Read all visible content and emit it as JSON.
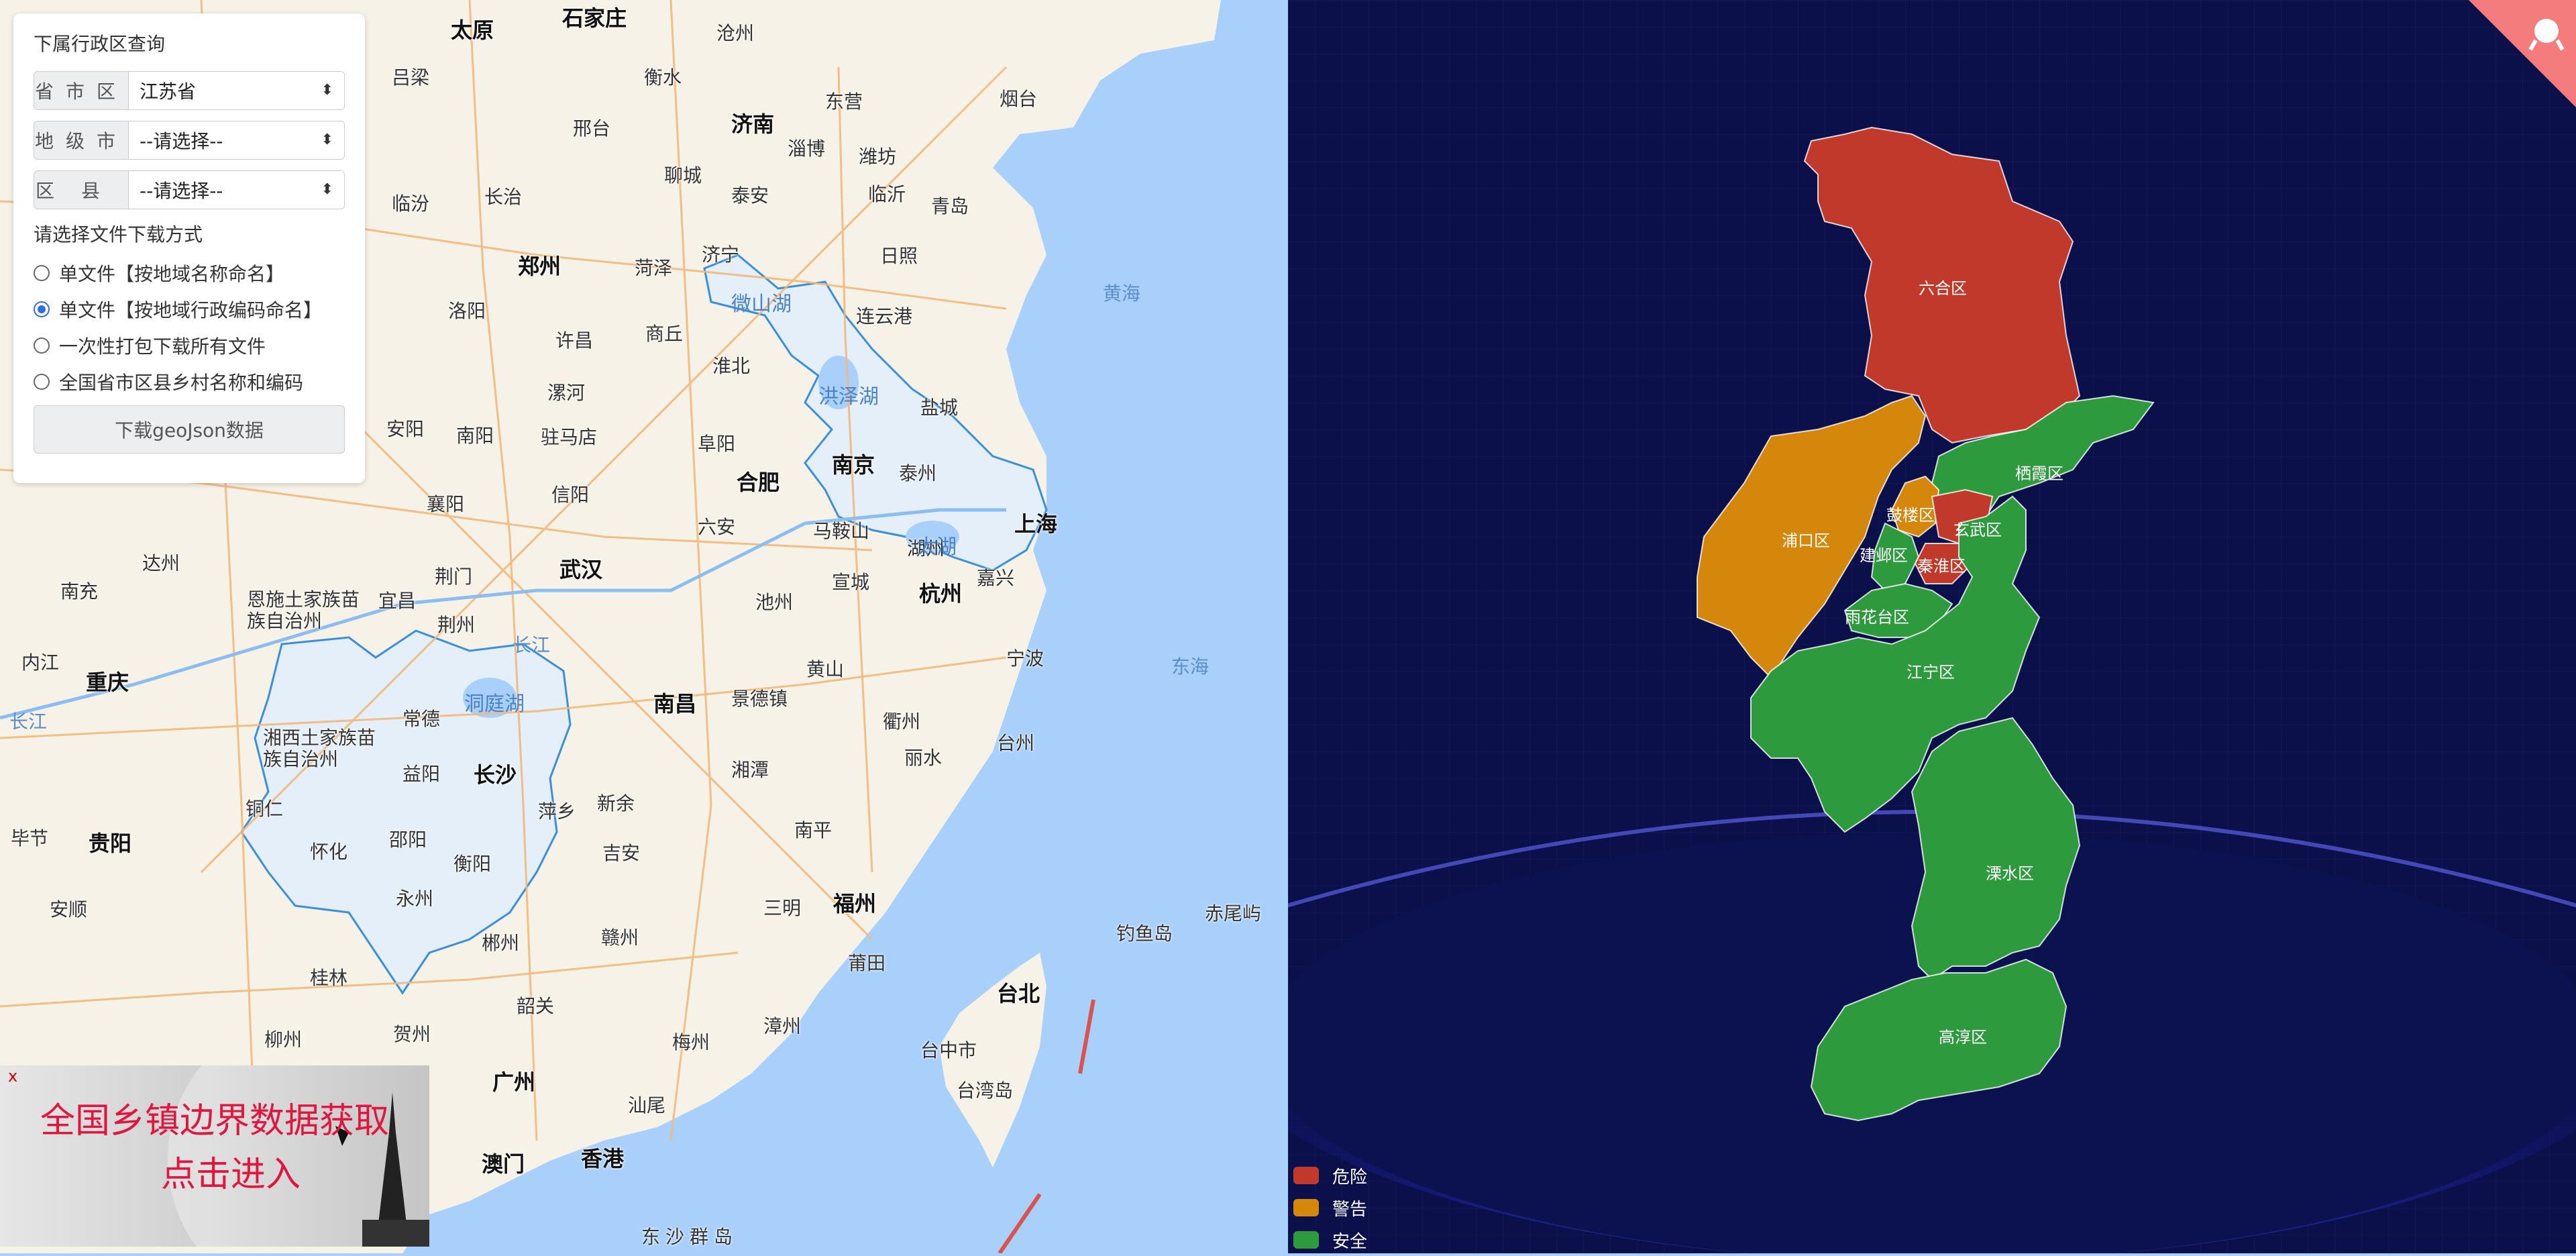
{
  "panel": {
    "title": "下属行政区查询",
    "province": {
      "label": "省市区",
      "value": "江苏省"
    },
    "city": {
      "label": "地级市",
      "value": "--请选择--"
    },
    "county": {
      "label": "区县",
      "value": "--请选择--"
    },
    "download_heading": "请选择文件下载方式",
    "options": [
      {
        "label": "单文件【按地域名称命名】",
        "checked": false
      },
      {
        "label": "单文件【按地域行政编码命名】",
        "checked": true
      },
      {
        "label": "一次性打包下载所有文件",
        "checked": false
      },
      {
        "label": "全国省市区县乡村名称和编码",
        "checked": false
      }
    ],
    "download_button": "下载geoJson数据"
  },
  "banner": {
    "close": "x",
    "line1": "全国乡镇边界数据获取",
    "line2": "点击进入"
  },
  "left_map": {
    "cities": [
      "太原",
      "石家庄",
      "沧州",
      "济南",
      "烟台",
      "郑州",
      "合肥",
      "南京",
      "上海",
      "杭州",
      "武汉",
      "长沙",
      "南昌",
      "重庆",
      "贵阳",
      "福州",
      "台北",
      "广州",
      "香港",
      "澳门"
    ],
    "towns": [
      "衡水",
      "东营",
      "邢台",
      "淄博",
      "潍坊",
      "聊城",
      "泰安",
      "青岛",
      "日照",
      "菏泽",
      "济宁",
      "连云港",
      "商丘",
      "许昌",
      "漯河",
      "淮北",
      "盐城",
      "阜阳",
      "驻马店",
      "南阳",
      "信阳",
      "六安",
      "泰州",
      "马鞍山",
      "襄阳",
      "荆门",
      "宜昌",
      "荆州",
      "宣城",
      "湖州",
      "嘉兴",
      "池州",
      "宁波",
      "黄山",
      "景德镇",
      "衢州",
      "丽水",
      "常德",
      "湘潭",
      "台州",
      "益阳",
      "新余",
      "吉安",
      "南平",
      "邵阳",
      "衡阳",
      "赣州",
      "永州",
      "郴州",
      "三明",
      "莆田",
      "韶关",
      "梅州",
      "漳州",
      "汕尾",
      "达州",
      "南充",
      "内江",
      "安顺",
      "毕节",
      "桂林",
      "柳州",
      "贺州",
      "台中市",
      "台湾岛",
      "吕梁",
      "临汾",
      "长治",
      "临沂",
      "洛阳",
      "安阳",
      "铜仁",
      "萍乡",
      "怀化"
    ],
    "regions": [
      "恩施土家族苗族自治州",
      "湘西土家族苗族自治州"
    ],
    "water": [
      "黄海",
      "东海",
      "钓鱼岛",
      "赤尾屿",
      "东沙群岛",
      "长江",
      "长江"
    ],
    "lakes": [
      "微山湖",
      "洪泽湖",
      "太湖",
      "洞庭湖"
    ]
  },
  "right_map": {
    "districts": [
      {
        "name": "六合区",
        "status": "danger"
      },
      {
        "name": "栖霞区",
        "status": "safe"
      },
      {
        "name": "浦口区",
        "status": "warning"
      },
      {
        "name": "鼓楼区",
        "status": "warning"
      },
      {
        "name": "玄武区",
        "status": "danger"
      },
      {
        "name": "建邺区",
        "status": "safe"
      },
      {
        "name": "秦淮区",
        "status": "danger"
      },
      {
        "name": "雨花台区",
        "status": "safe"
      },
      {
        "name": "江宁区",
        "status": "safe"
      },
      {
        "name": "溧水区",
        "status": "safe"
      },
      {
        "name": "高淳区",
        "status": "safe"
      }
    ],
    "colors": {
      "danger": "#c0392b",
      "warning": "#d4870a",
      "safe": "#2e9a3e"
    },
    "legend": [
      {
        "label": "危险",
        "color": "#c0392b"
      },
      {
        "label": "警告",
        "color": "#d4870a"
      },
      {
        "label": "安全",
        "color": "#2e9a3e"
      }
    ]
  }
}
